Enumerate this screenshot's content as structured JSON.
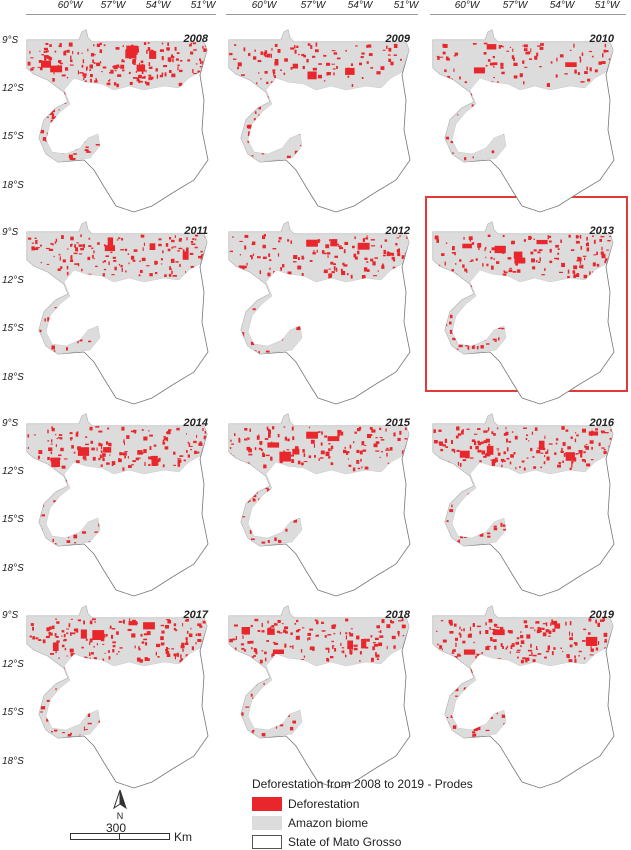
{
  "longitude_labels": [
    "60°W",
    "57°W",
    "54°W",
    "51°W"
  ],
  "latitude_labels": [
    "9°S",
    "12°S",
    "15°S",
    "18°S"
  ],
  "panels": [
    {
      "year": "2008",
      "density": 1.0
    },
    {
      "year": "2009",
      "density": 0.55
    },
    {
      "year": "2010",
      "density": 0.55
    },
    {
      "year": "2011",
      "density": 0.7
    },
    {
      "year": "2012",
      "density": 0.6
    },
    {
      "year": "2013",
      "density": 0.75,
      "highlighted": true
    },
    {
      "year": "2014",
      "density": 0.8
    },
    {
      "year": "2015",
      "density": 0.8
    },
    {
      "year": "2016",
      "density": 0.85
    },
    {
      "year": "2017",
      "density": 0.8
    },
    {
      "year": "2018",
      "density": 0.8
    },
    {
      "year": "2019",
      "density": 0.9
    }
  ],
  "legend": {
    "title": "Deforestation from 2008 to 2019 - Prodes",
    "items": [
      {
        "label": "Deforestation",
        "color": "#e8262b",
        "border": "#e8262b"
      },
      {
        "label": "Amazon  biome",
        "color": "#dcdcdc",
        "border": "#dcdcdc"
      },
      {
        "label": "State of Mato Grosso",
        "color": "#ffffff",
        "border": "#555555"
      }
    ]
  },
  "scale": {
    "value": "300",
    "unit": "Km",
    "north": "N"
  },
  "colors": {
    "deforestation": "#e8262b",
    "biome": "#dcdcdc",
    "state_outline": "#777777",
    "highlight": "#e53935"
  }
}
